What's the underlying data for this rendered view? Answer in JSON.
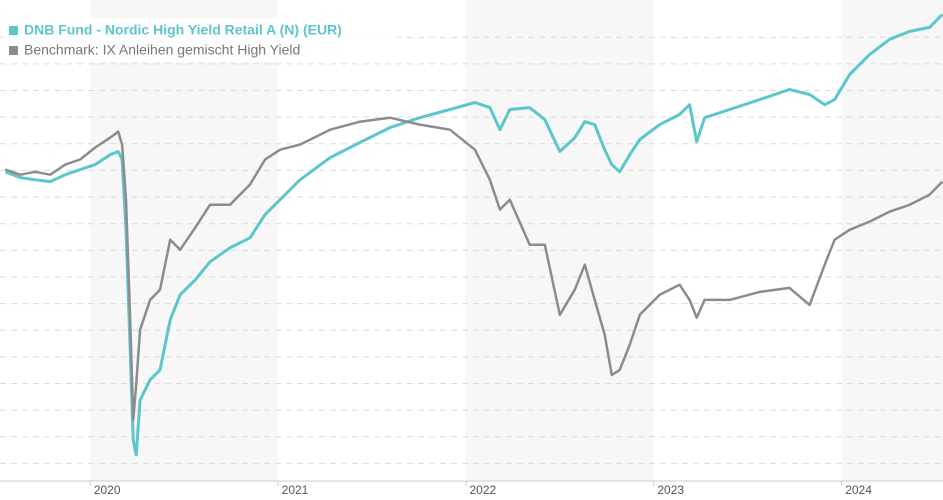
{
  "chart_data": {
    "type": "line",
    "x": [
      2019.548,
      2019.628,
      2019.707,
      2019.787,
      2019.867,
      2019.947,
      2020.027,
      2020.106,
      2020.149,
      2020.17,
      2020.191,
      2020.213,
      2020.229,
      2020.245,
      2020.266,
      2020.319,
      2020.372,
      2020.426,
      2020.479,
      2020.559,
      2020.638,
      2020.745,
      2020.851,
      2020.931,
      2021.011,
      2021.117,
      2021.277,
      2021.436,
      2021.596,
      2021.755,
      2021.915,
      2022.048,
      2022.128,
      2022.181,
      2022.234,
      2022.34,
      2022.42,
      2022.5,
      2022.58,
      2022.633,
      2022.686,
      2022.739,
      2022.777,
      2022.819,
      2022.872,
      2022.926,
      2023.032,
      2023.138,
      2023.191,
      2023.229,
      2023.271,
      2023.404,
      2023.564,
      2023.723,
      2023.83,
      2023.91,
      2023.963,
      2024.043,
      2024.149,
      2024.255,
      2024.362,
      2024.468,
      2024.537
    ],
    "series": [
      {
        "name": "DNB Fund - Nordic High Yield Retail A (N) (EUR)",
        "color": "#5cc6ca",
        "values": [
          119.5,
          117.3,
          116.5,
          115.8,
          118.4,
          120.3,
          122.2,
          125.9,
          127.1,
          124.1,
          97.7,
          52.6,
          18.8,
          13.2,
          33.8,
          41.4,
          45.1,
          63.9,
          73.3,
          78.9,
          85.7,
          91.0,
          94.7,
          103.4,
          109.0,
          116.5,
          124.8,
          130.5,
          136.1,
          139.8,
          142.9,
          145.5,
          143.6,
          135.3,
          142.9,
          143.6,
          139.1,
          127.1,
          132.3,
          138.3,
          137.2,
          127.8,
          122.2,
          119.5,
          125.9,
          131.6,
          137.2,
          141.0,
          144.7,
          130.8,
          139.8,
          142.9,
          146.6,
          150.4,
          148.5,
          144.7,
          146.6,
          156.0,
          163.5,
          169.2,
          172.2,
          173.7,
          178.6
        ]
      },
      {
        "name": "Benchmark: IX Anleihen gemischt High Yield",
        "color": "#8c8c8c",
        "values": [
          120.3,
          118.4,
          119.5,
          118.4,
          122.2,
          124.1,
          128.6,
          132.3,
          134.6,
          129.7,
          109.0,
          63.9,
          26.3,
          39.5,
          60.2,
          71.4,
          75.2,
          94.0,
          90.2,
          98.5,
          107.1,
          107.1,
          114.7,
          124.1,
          127.8,
          129.7,
          135.3,
          138.3,
          139.8,
          137.2,
          135.3,
          127.8,
          116.5,
          105.3,
          109.0,
          92.1,
          92.1,
          65.8,
          75.2,
          84.6,
          71.4,
          58.3,
          43.2,
          45.1,
          54.5,
          65.8,
          73.3,
          77.1,
          71.4,
          64.7,
          71.4,
          71.4,
          74.4,
          75.9,
          69.5,
          84.6,
          94.0,
          97.7,
          100.8,
          104.5,
          107.1,
          110.9,
          115.8
        ]
      }
    ],
    "xlim": [
      2019.52,
      2024.54
    ],
    "xticks": [
      2020,
      2021,
      2022,
      2023,
      2024
    ],
    "ylim": [
      0,
      184
    ],
    "yticks": [
      10,
      20,
      30,
      40,
      50,
      60,
      70,
      80,
      90,
      100,
      110,
      120,
      130,
      140,
      150,
      160,
      170
    ],
    "grid": true,
    "legend": "top-left"
  }
}
